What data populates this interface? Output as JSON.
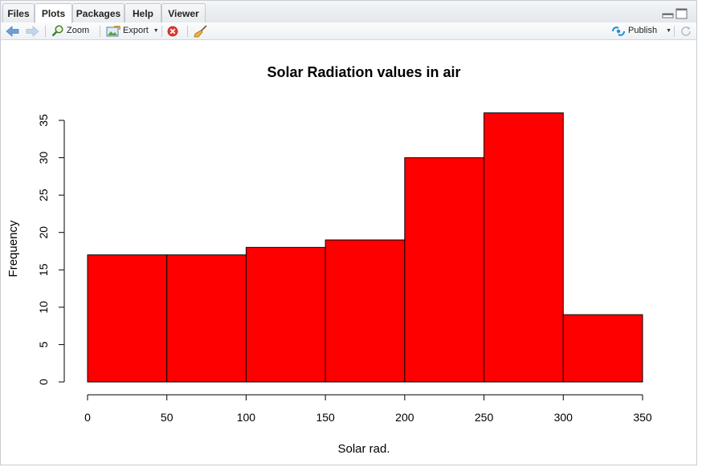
{
  "tabs": [
    {
      "label": "Files",
      "active": false
    },
    {
      "label": "Plots",
      "active": true
    },
    {
      "label": "Packages",
      "active": false
    },
    {
      "label": "Help",
      "active": false
    },
    {
      "label": "Viewer",
      "active": false
    }
  ],
  "toolbar": {
    "zoom_label": "Zoom",
    "export_label": "Export",
    "publish_label": "Publish"
  },
  "colors": {
    "bar_fill": "#ff0000",
    "nav_arrow": "#6d9fd4",
    "publish_icon": "#1a8fd6"
  },
  "chart_data": {
    "type": "bar",
    "title": "Solar Radiation values in air",
    "xlabel": "Solar rad.",
    "ylabel": "Frequency",
    "bins": [
      [
        0,
        50
      ],
      [
        50,
        100
      ],
      [
        100,
        150
      ],
      [
        150,
        200
      ],
      [
        200,
        250
      ],
      [
        250,
        300
      ],
      [
        300,
        350
      ]
    ],
    "values": [
      17,
      17,
      18,
      19,
      30,
      36,
      9
    ],
    "xlim": [
      0,
      350
    ],
    "ylim": [
      0,
      35
    ],
    "xticks": [
      "0",
      "50",
      "100",
      "150",
      "200",
      "250",
      "300",
      "350"
    ],
    "yticks": [
      "0",
      "5",
      "10",
      "15",
      "20",
      "25",
      "30",
      "35"
    ],
    "grid": false,
    "legend": "none"
  }
}
